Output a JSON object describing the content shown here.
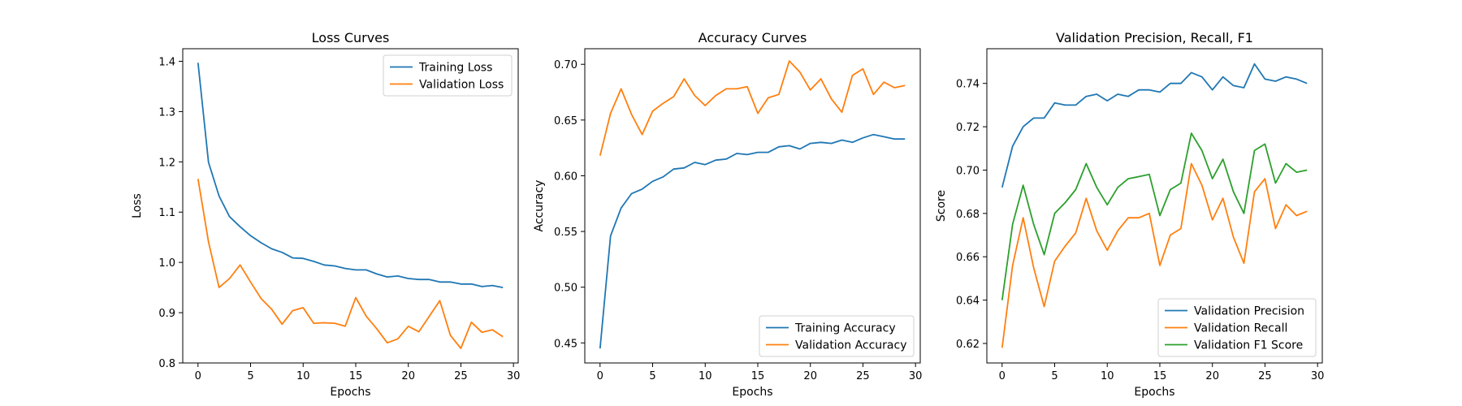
{
  "colors": {
    "blue": "#1f77b4",
    "orange": "#ff7f0e",
    "green": "#2ca02c"
  },
  "chart_data": [
    {
      "type": "line",
      "title": "Loss Curves",
      "xlabel": "Epochs",
      "ylabel": "Loss",
      "xlim": [
        -1.45,
        30.45
      ],
      "ylim": [
        0.8,
        1.425
      ],
      "xticks": [
        0,
        5,
        10,
        15,
        20,
        25,
        30
      ],
      "yticks": [
        0.8,
        0.9,
        1.0,
        1.1,
        1.2,
        1.3,
        1.4
      ],
      "ytick_decimals": 1,
      "legend": "top-right",
      "x": [
        0,
        1,
        2,
        3,
        4,
        5,
        6,
        7,
        8,
        9,
        10,
        11,
        12,
        13,
        14,
        15,
        16,
        17,
        18,
        19,
        20,
        21,
        22,
        23,
        24,
        25,
        26,
        27,
        28,
        29
      ],
      "series": [
        {
          "name": "Training Loss",
          "color": "blue",
          "values": [
            1.397,
            1.199,
            1.132,
            1.091,
            1.071,
            1.053,
            1.039,
            1.027,
            1.02,
            1.009,
            1.008,
            1.002,
            0.995,
            0.993,
            0.988,
            0.985,
            0.985,
            0.977,
            0.971,
            0.973,
            0.968,
            0.966,
            0.966,
            0.961,
            0.961,
            0.957,
            0.957,
            0.952,
            0.954,
            0.95
          ]
        },
        {
          "name": "Validation Loss",
          "color": "orange",
          "values": [
            1.166,
            1.041,
            0.95,
            0.968,
            0.995,
            0.961,
            0.928,
            0.907,
            0.877,
            0.904,
            0.91,
            0.879,
            0.88,
            0.879,
            0.873,
            0.93,
            0.893,
            0.868,
            0.84,
            0.848,
            0.873,
            0.862,
            0.893,
            0.924,
            0.855,
            0.829,
            0.881,
            0.861,
            0.866,
            0.852
          ]
        }
      ]
    },
    {
      "type": "line",
      "title": "Accuracy Curves",
      "xlabel": "Epochs",
      "ylabel": "Accuracy",
      "xlim": [
        -1.45,
        30.45
      ],
      "ylim": [
        0.432,
        0.714
      ],
      "xticks": [
        0,
        5,
        10,
        15,
        20,
        25,
        30
      ],
      "yticks": [
        0.45,
        0.5,
        0.55,
        0.6,
        0.65,
        0.7
      ],
      "ytick_decimals": 2,
      "legend": "bottom-right",
      "x": [
        0,
        1,
        2,
        3,
        4,
        5,
        6,
        7,
        8,
        9,
        10,
        11,
        12,
        13,
        14,
        15,
        16,
        17,
        18,
        19,
        20,
        21,
        22,
        23,
        24,
        25,
        26,
        27,
        28,
        29
      ],
      "series": [
        {
          "name": "Training Accuracy",
          "color": "blue",
          "values": [
            0.445,
            0.546,
            0.571,
            0.584,
            0.588,
            0.595,
            0.599,
            0.606,
            0.607,
            0.612,
            0.61,
            0.614,
            0.615,
            0.62,
            0.619,
            0.621,
            0.621,
            0.626,
            0.627,
            0.624,
            0.629,
            0.63,
            0.629,
            0.632,
            0.63,
            0.634,
            0.637,
            0.635,
            0.633,
            0.633
          ]
        },
        {
          "name": "Validation Accuracy",
          "color": "orange",
          "values": [
            0.618,
            0.656,
            0.678,
            0.655,
            0.637,
            0.658,
            0.665,
            0.671,
            0.687,
            0.672,
            0.663,
            0.672,
            0.678,
            0.678,
            0.68,
            0.656,
            0.67,
            0.673,
            0.703,
            0.693,
            0.677,
            0.687,
            0.669,
            0.657,
            0.69,
            0.696,
            0.673,
            0.684,
            0.679,
            0.681
          ]
        }
      ]
    },
    {
      "type": "line",
      "title": "Validation Precision, Recall, F1",
      "xlabel": "Epochs",
      "ylabel": "Score",
      "xlim": [
        -1.45,
        30.45
      ],
      "ylim": [
        0.611,
        0.756
      ],
      "xticks": [
        0,
        5,
        10,
        15,
        20,
        25,
        30
      ],
      "yticks": [
        0.62,
        0.64,
        0.66,
        0.68,
        0.7,
        0.72,
        0.74
      ],
      "ytick_decimals": 2,
      "legend": "bottom-right",
      "x": [
        0,
        1,
        2,
        3,
        4,
        5,
        6,
        7,
        8,
        9,
        10,
        11,
        12,
        13,
        14,
        15,
        16,
        17,
        18,
        19,
        20,
        21,
        22,
        23,
        24,
        25,
        26,
        27,
        28,
        29
      ],
      "series": [
        {
          "name": "Validation Precision",
          "color": "blue",
          "values": [
            0.692,
            0.711,
            0.72,
            0.724,
            0.724,
            0.731,
            0.73,
            0.73,
            0.734,
            0.735,
            0.732,
            0.735,
            0.734,
            0.737,
            0.737,
            0.736,
            0.74,
            0.74,
            0.745,
            0.743,
            0.737,
            0.743,
            0.739,
            0.738,
            0.749,
            0.742,
            0.741,
            0.743,
            0.742,
            0.74
          ]
        },
        {
          "name": "Validation Recall",
          "color": "orange",
          "values": [
            0.618,
            0.656,
            0.678,
            0.655,
            0.637,
            0.658,
            0.665,
            0.671,
            0.687,
            0.672,
            0.663,
            0.672,
            0.678,
            0.678,
            0.68,
            0.656,
            0.67,
            0.673,
            0.703,
            0.693,
            0.677,
            0.687,
            0.669,
            0.657,
            0.69,
            0.696,
            0.673,
            0.684,
            0.679,
            0.681
          ]
        },
        {
          "name": "Validation F1 Score",
          "color": "green",
          "values": [
            0.64,
            0.675,
            0.693,
            0.675,
            0.661,
            0.68,
            0.685,
            0.691,
            0.703,
            0.692,
            0.684,
            0.692,
            0.696,
            0.697,
            0.698,
            0.679,
            0.691,
            0.694,
            0.717,
            0.709,
            0.696,
            0.705,
            0.69,
            0.68,
            0.709,
            0.712,
            0.694,
            0.703,
            0.699,
            0.7
          ]
        }
      ]
    }
  ]
}
